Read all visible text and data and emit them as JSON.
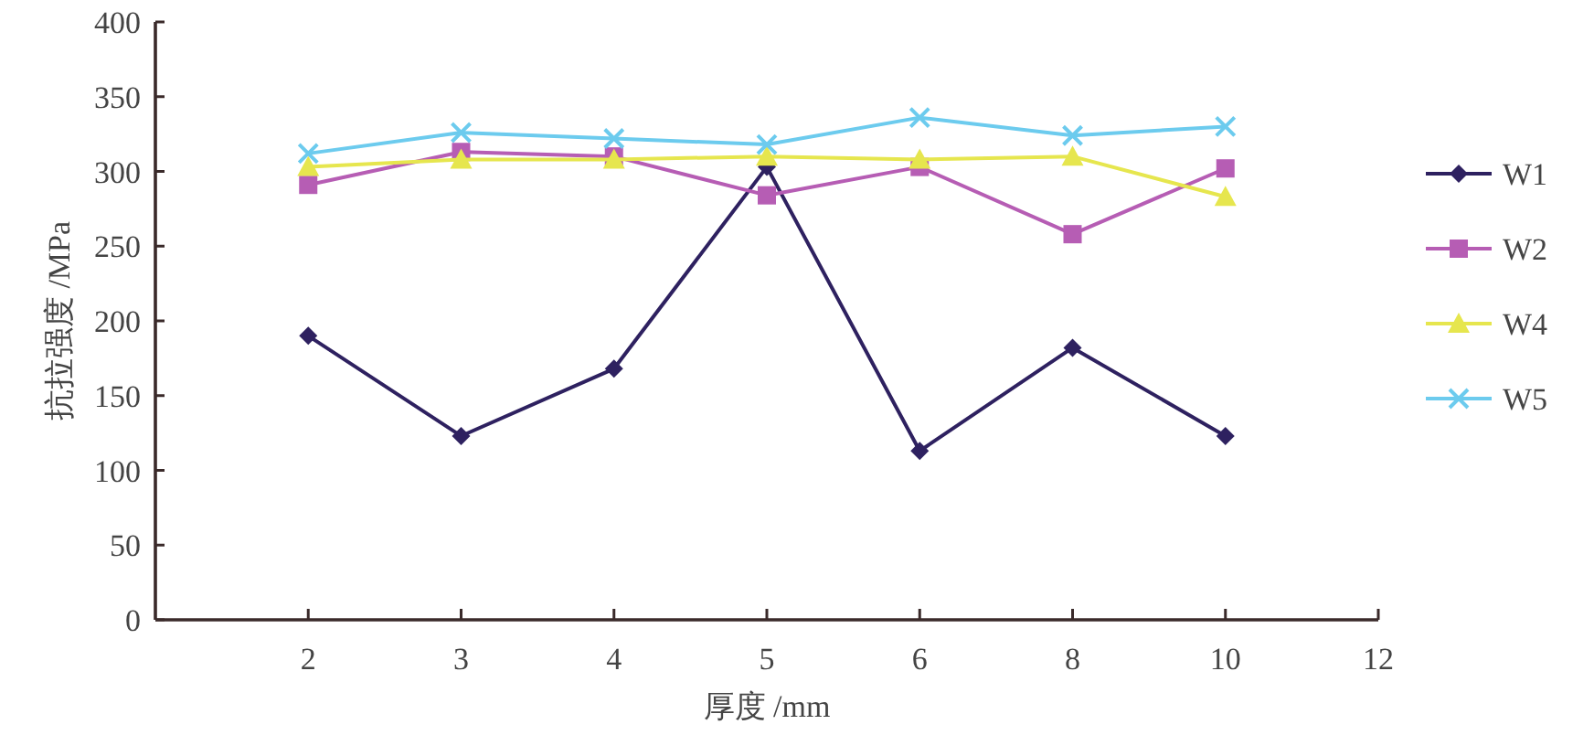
{
  "chart_data": {
    "type": "line",
    "xlabel": "厚度 /mm",
    "ylabel": "抗拉强度 /MPa",
    "categories": [
      null,
      "2",
      "3",
      "4",
      "5",
      "6",
      "8",
      "10",
      "12"
    ],
    "ylim": [
      0,
      400
    ],
    "yticks": [
      0,
      50,
      100,
      150,
      200,
      250,
      300,
      350,
      400
    ],
    "grid": false,
    "legend": "right",
    "line_style": "solid",
    "series": [
      {
        "name": "W1",
        "color": "#2e2160",
        "marker": "diamond",
        "values": [
          null,
          190,
          123,
          168,
          303,
          113,
          182,
          123,
          null
        ]
      },
      {
        "name": "W2",
        "color": "#b65db4",
        "marker": "square",
        "values": [
          null,
          291,
          313,
          310,
          284,
          303,
          258,
          302,
          null
        ]
      },
      {
        "name": "W4",
        "color": "#e6e64e",
        "marker": "triangle",
        "values": [
          null,
          303,
          308,
          308,
          310,
          308,
          310,
          283,
          null
        ]
      },
      {
        "name": "W5",
        "color": "#6ccbee",
        "marker": "cross",
        "values": [
          null,
          312,
          326,
          322,
          318,
          336,
          324,
          330,
          null
        ]
      }
    ]
  }
}
